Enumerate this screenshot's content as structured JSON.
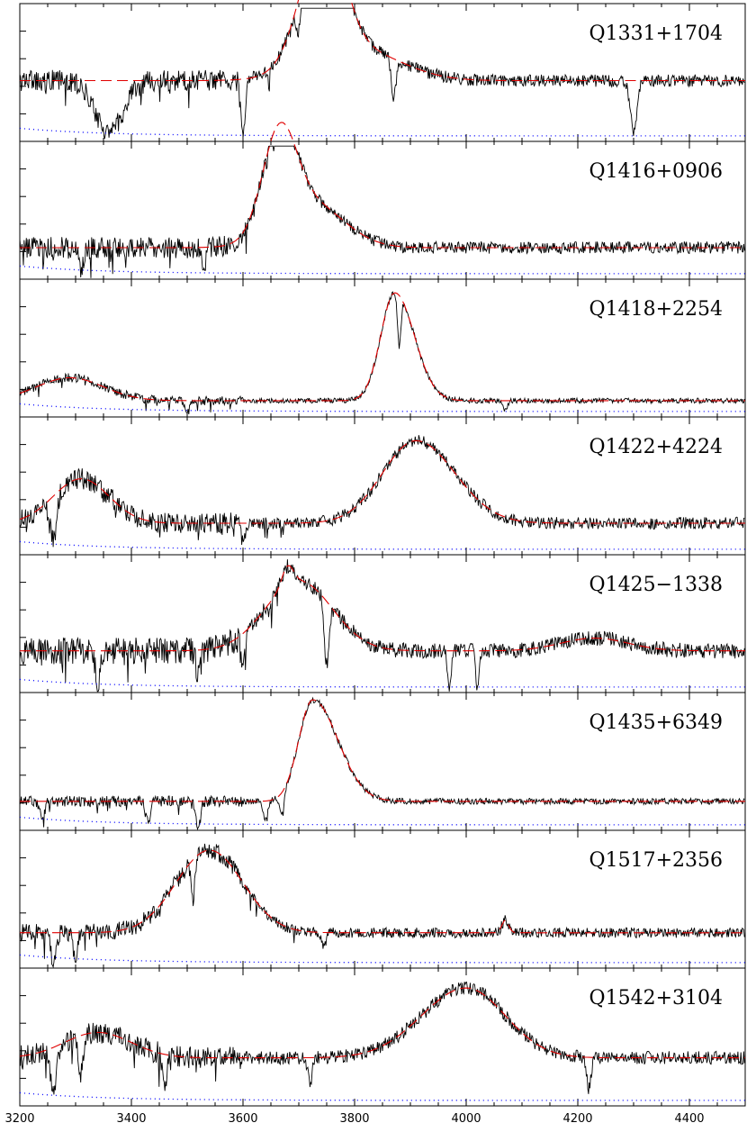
{
  "chart_data": {
    "type": "line",
    "x_ticks": [
      3200,
      3400,
      3600,
      3800,
      4000,
      4200,
      4400
    ],
    "xlim": [
      3200,
      4500
    ],
    "grid": false,
    "colors": {
      "spectrum": "#000000",
      "fit": "#e00000",
      "error": "#0000ff"
    },
    "panels": [
      {
        "label": "Q1331+1704",
        "base": 0.45,
        "noise": 0.12,
        "lines": [
          [
            3745,
            1.0,
            40,
            35
          ],
          [
            3800,
            0.25,
            80,
            80
          ]
        ],
        "absorptions": [
          [
            3360,
            0.4,
            25
          ],
          [
            3600,
            0.45,
            4
          ],
          [
            3870,
            0.3,
            4
          ],
          [
            4300,
            0.4,
            6
          ],
          [
            3700,
            0.25,
            4
          ]
        ],
        "x": [
          3200,
          3300,
          3500,
          3650,
          3745,
          3800,
          3900,
          4100,
          4300,
          4500
        ],
        "y": [
          0.68,
          0.48,
          0.48,
          0.52,
          1.0,
          0.72,
          0.38,
          0.35,
          0.37,
          0.33
        ]
      },
      {
        "label": "Q1416+0906",
        "base": 0.22,
        "noise": 0.12,
        "lines": [
          [
            3665,
            0.75,
            30,
            30
          ],
          [
            3720,
            0.35,
            60,
            60
          ]
        ],
        "absorptions": [
          [
            3310,
            0.2,
            4
          ],
          [
            3530,
            0.15,
            4
          ]
        ],
        "x": [
          3200,
          3300,
          3500,
          3600,
          3665,
          3720,
          3800,
          4000,
          4250,
          4500
        ],
        "y": [
          0.3,
          0.27,
          0.26,
          0.42,
          0.97,
          0.58,
          0.25,
          0.19,
          0.23,
          0.15
        ]
      },
      {
        "label": "Q1418+2254",
        "base": 0.1,
        "noise": 0.05,
        "lines": [
          [
            3872,
            0.85,
            25,
            35
          ],
          [
            3290,
            0.18,
            60,
            60
          ]
        ],
        "absorptions": [
          [
            3500,
            0.1,
            4
          ],
          [
            3880,
            0.4,
            3
          ],
          [
            4070,
            0.08,
            4
          ]
        ],
        "x": [
          3200,
          3290,
          3400,
          3700,
          3800,
          3872,
          3950,
          4100,
          4300,
          4500
        ],
        "y": [
          0.3,
          0.3,
          0.18,
          0.12,
          0.2,
          0.96,
          0.28,
          0.1,
          0.09,
          0.1
        ]
      },
      {
        "label": "Q1422+4224",
        "base": 0.22,
        "noise": 0.12,
        "lines": [
          [
            3910,
            0.65,
            60,
            70
          ],
          [
            3310,
            0.35,
            50,
            50
          ]
        ],
        "absorptions": [
          [
            3260,
            0.35,
            6
          ],
          [
            3600,
            0.15,
            4
          ]
        ],
        "x": [
          3200,
          3310,
          3500,
          3700,
          3850,
          3910,
          4000,
          4100,
          4300,
          4500
        ],
        "y": [
          0.45,
          0.55,
          0.3,
          0.25,
          0.55,
          0.92,
          0.55,
          0.25,
          0.2,
          0.32
        ]
      },
      {
        "label": "Q1425−1338",
        "base": 0.3,
        "noise": 0.15,
        "lines": [
          [
            3700,
            0.55,
            60,
            60
          ],
          [
            3680,
            0.15,
            10,
            10
          ],
          [
            4230,
            0.1,
            60,
            60
          ]
        ],
        "absorptions": [
          [
            3340,
            0.25,
            4
          ],
          [
            3520,
            0.2,
            4
          ],
          [
            3600,
            0.25,
            4
          ],
          [
            3750,
            0.5,
            4
          ],
          [
            3970,
            0.3,
            3
          ],
          [
            4020,
            0.3,
            3
          ]
        ],
        "x": [
          3200,
          3400,
          3600,
          3680,
          3720,
          3790,
          3850,
          4000,
          4230,
          4500
        ],
        "y": [
          0.35,
          0.4,
          0.6,
          0.95,
          0.85,
          0.5,
          0.3,
          0.28,
          0.35,
          0.25
        ]
      },
      {
        "label": "Q1435+6349",
        "base": 0.2,
        "noise": 0.06,
        "lines": [
          [
            3725,
            0.8,
            25,
            45
          ]
        ],
        "absorptions": [
          [
            3240,
            0.15,
            4
          ],
          [
            3430,
            0.15,
            4
          ],
          [
            3520,
            0.2,
            4
          ],
          [
            3640,
            0.15,
            4
          ],
          [
            3670,
            0.15,
            4
          ]
        ],
        "x": [
          3200,
          3400,
          3650,
          3700,
          3725,
          3780,
          3850,
          4000,
          4300,
          4500
        ],
        "y": [
          0.45,
          0.35,
          0.45,
          0.7,
          0.97,
          0.55,
          0.3,
          0.22,
          0.2,
          0.18
        ]
      },
      {
        "label": "Q1517+2356",
        "base": 0.25,
        "noise": 0.1,
        "lines": [
          [
            3540,
            0.65,
            60,
            60
          ],
          [
            4070,
            0.1,
            6,
            6
          ]
        ],
        "absorptions": [
          [
            3260,
            0.25,
            4
          ],
          [
            3510,
            0.35,
            3
          ],
          [
            3745,
            0.12,
            4
          ],
          [
            3300,
            0.2,
            4
          ]
        ],
        "x": [
          3200,
          3350,
          3450,
          3540,
          3620,
          3700,
          3900,
          4070,
          4300,
          4500
        ],
        "y": [
          0.35,
          0.38,
          0.6,
          0.95,
          0.7,
          0.35,
          0.28,
          0.32,
          0.25,
          0.4
        ]
      },
      {
        "label": "Q1542+3104",
        "base": 0.35,
        "noise": 0.13,
        "lines": [
          [
            4000,
            0.55,
            80,
            70
          ],
          [
            3340,
            0.2,
            60,
            60
          ]
        ],
        "absorptions": [
          [
            3260,
            0.35,
            6
          ],
          [
            3310,
            0.3,
            4
          ],
          [
            3460,
            0.2,
            4
          ],
          [
            3720,
            0.2,
            4
          ],
          [
            4220,
            0.25,
            4
          ]
        ],
        "x": [
          3200,
          3340,
          3500,
          3700,
          3850,
          4000,
          4100,
          4200,
          4350,
          4500
        ],
        "y": [
          0.5,
          0.55,
          0.38,
          0.3,
          0.5,
          0.88,
          0.45,
          0.35,
          0.38,
          0.3
        ]
      }
    ]
  }
}
